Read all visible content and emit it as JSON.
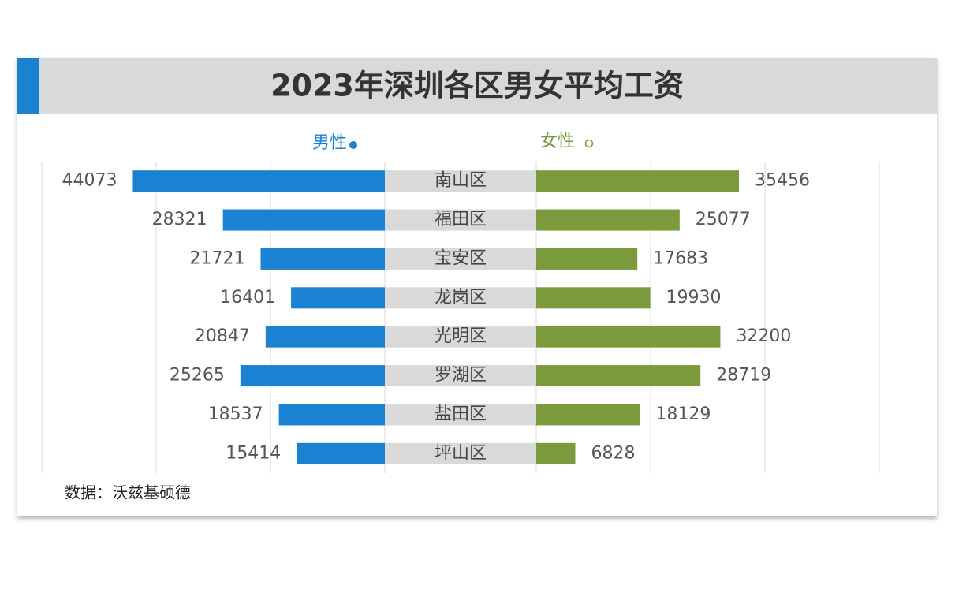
{
  "chart_data": {
    "type": "butterfly",
    "title": "2023年深圳各区男女平均工资",
    "categories": [
      "南山区",
      "福田区",
      "宝安区",
      "龙岗区",
      "光明区",
      "罗湖区",
      "盐田区",
      "坪山区"
    ],
    "series": [
      {
        "name": "男性",
        "color": "#1a82d0",
        "values": [
          44073,
          28321,
          21721,
          16401,
          20847,
          25265,
          18537,
          15414
        ]
      },
      {
        "name": "女性",
        "color": "#7a9a3c",
        "values": [
          35456,
          25077,
          17683,
          19930,
          32200,
          28719,
          18129,
          6828
        ]
      }
    ],
    "xlim": [
      0,
      60000
    ],
    "xticks": [
      0,
      20000,
      40000,
      60000
    ],
    "grid": true,
    "source": "数据：沃兹基硕德"
  }
}
